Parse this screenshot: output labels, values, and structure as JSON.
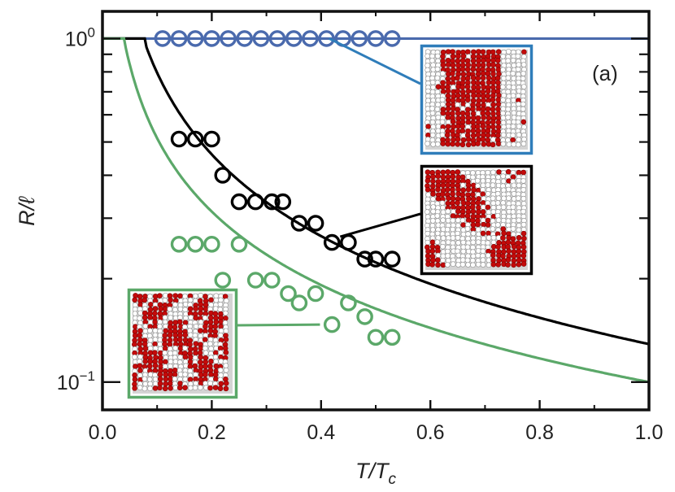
{
  "chart_data": {
    "type": "scatter",
    "panel_label": "(a)",
    "xlabel_main": "T/T",
    "xlabel_sub": "c",
    "ylabel_main": "R/",
    "ylabel_ell": "ℓ",
    "xlim": [
      0.0,
      1.0
    ],
    "ylim": [
      0.083,
      1.2
    ],
    "yscale": "log",
    "x_ticks": [
      0.0,
      0.2,
      0.4,
      0.6,
      0.8,
      1.0
    ],
    "x_tick_labels": [
      "0.0",
      "0.2",
      "0.4",
      "0.6",
      "0.8",
      "1.0"
    ],
    "y_major_ticks": [
      {
        "value": 1.0,
        "base": "10",
        "exp": "0"
      },
      {
        "value": 0.1,
        "base": "10",
        "exp": "−1"
      }
    ],
    "y_minor_ticks": [
      0.2,
      0.3,
      0.4,
      0.5,
      0.6,
      0.7,
      0.8,
      0.9
    ],
    "colors": {
      "blue": "#4a6aad",
      "black": "#000000",
      "green": "#5ba869",
      "red": "#c40a0a",
      "grey": "#d4d4d4",
      "inset_blue": "#2f7dba"
    },
    "series": [
      {
        "name": "blue",
        "color": "#4a6aad",
        "x": [
          0.11,
          0.14,
          0.17,
          0.2,
          0.23,
          0.26,
          0.29,
          0.32,
          0.35,
          0.38,
          0.41,
          0.44,
          0.47,
          0.5,
          0.53
        ],
        "y": [
          1,
          1,
          1,
          1,
          1,
          1,
          1,
          1,
          1,
          1,
          1,
          1,
          1,
          1,
          1
        ],
        "curve": {
          "kind": "flat",
          "from": 0.0,
          "to": 1.0,
          "value": 1.0
        }
      },
      {
        "name": "black",
        "color": "#000000",
        "x": [
          0.14,
          0.17,
          0.2,
          0.22,
          0.25,
          0.28,
          0.31,
          0.33,
          0.36,
          0.39,
          0.42,
          0.45,
          0.48,
          0.5,
          0.53
        ],
        "y": [
          0.51,
          0.51,
          0.51,
          0.4,
          0.335,
          0.335,
          0.335,
          0.335,
          0.29,
          0.29,
          0.255,
          0.255,
          0.228,
          0.228,
          0.228
        ],
        "curve": {
          "kind": "power",
          "a": 0.129,
          "n": 0.79,
          "x0": 0.0774
        }
      },
      {
        "name": "green",
        "color": "#5ba869",
        "x": [
          0.14,
          0.17,
          0.2,
          0.25,
          0.22,
          0.28,
          0.31,
          0.34,
          0.36,
          0.39,
          0.45,
          0.48,
          0.42,
          0.5,
          0.53
        ],
        "y": [
          0.252,
          0.252,
          0.252,
          0.252,
          0.198,
          0.198,
          0.198,
          0.181,
          0.17,
          0.181,
          0.17,
          0.155,
          0.147,
          0.135,
          0.135
        ],
        "curve": {
          "kind": "power",
          "a": 0.1,
          "n": 0.71,
          "x0": 0.0395
        }
      }
    ],
    "insets": [
      {
        "name": "blue-inset",
        "series": "blue",
        "pattern": "stripe",
        "anchor_x": 0.415,
        "anchor_y": 1.0
      },
      {
        "name": "black-inset",
        "series": "black",
        "pattern": "mixed",
        "anchor_x": 0.435,
        "anchor_y": 0.265
      },
      {
        "name": "green-inset",
        "series": "green",
        "pattern": "fine",
        "anchor_x": 0.398,
        "anchor_y": 0.147
      }
    ]
  }
}
